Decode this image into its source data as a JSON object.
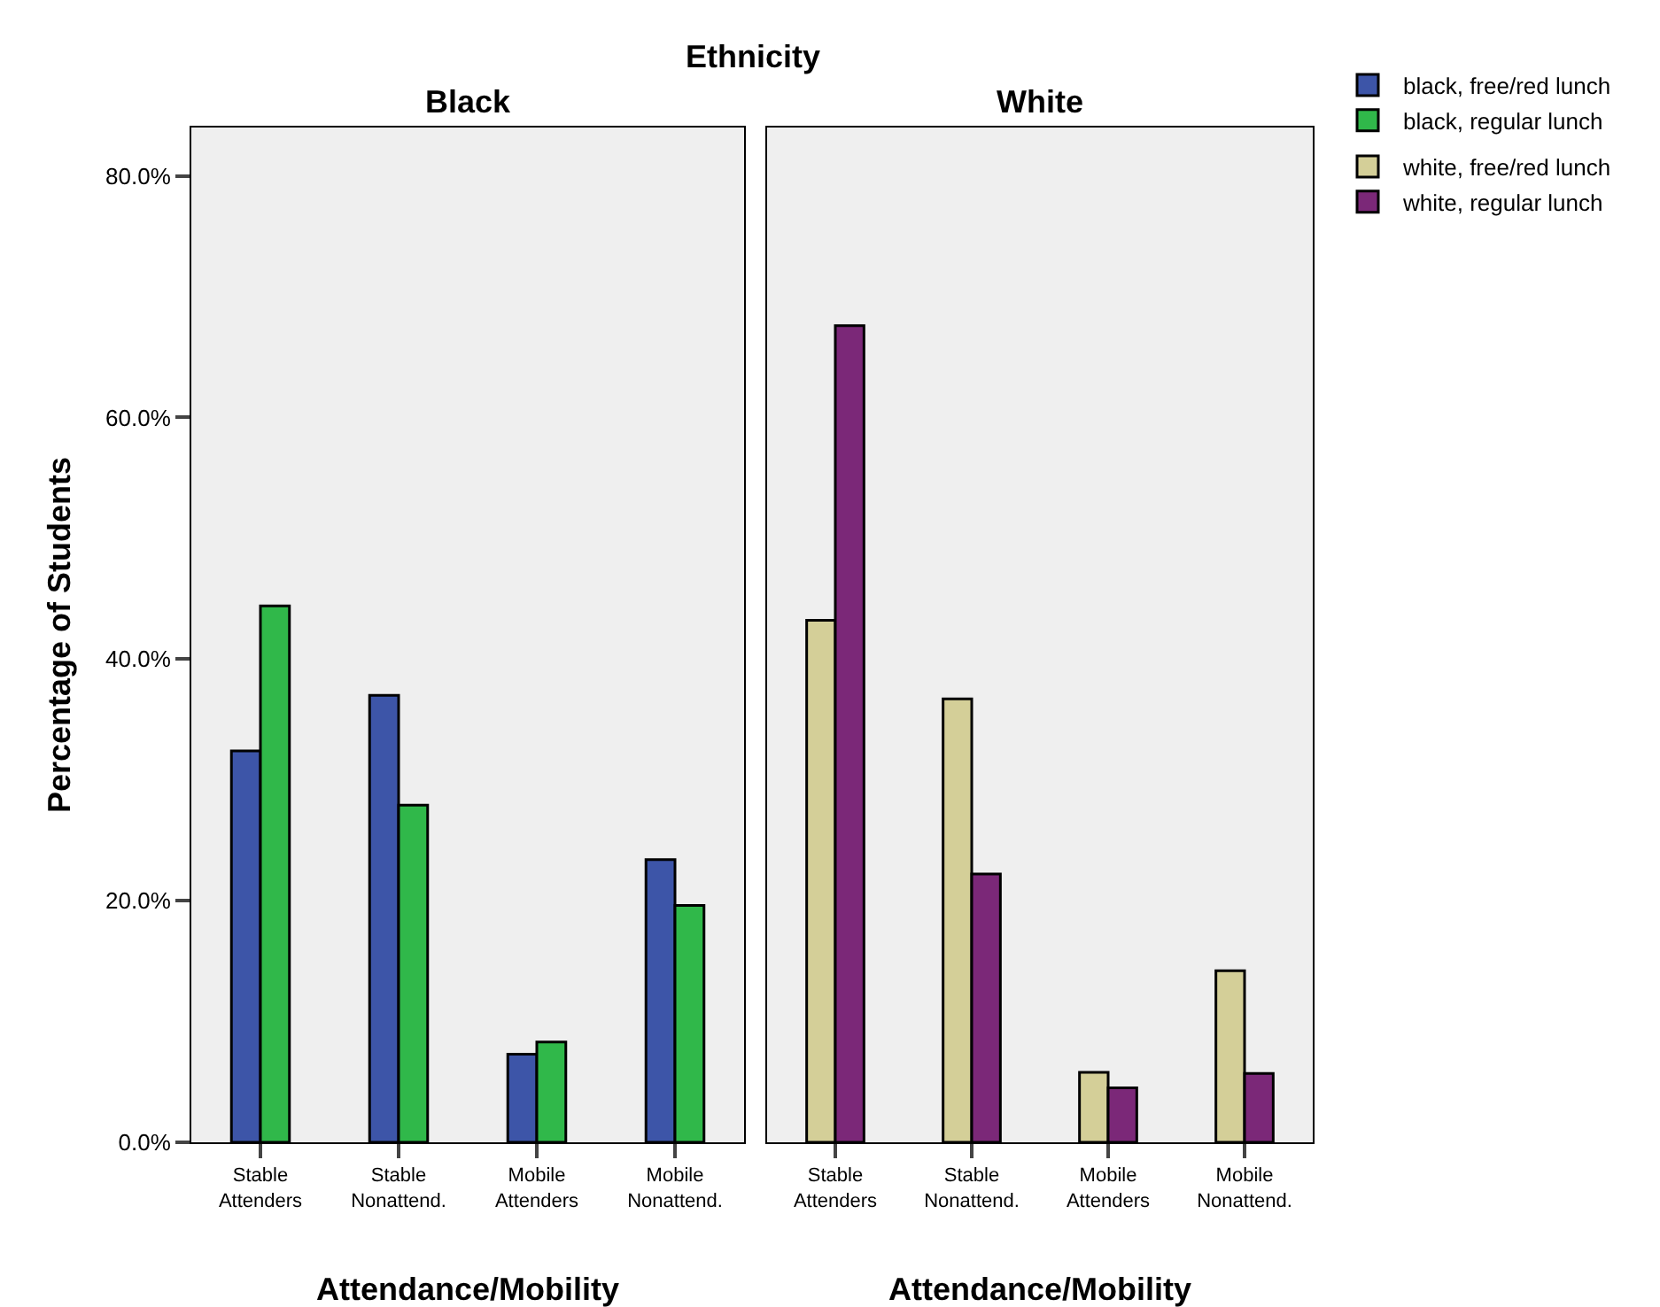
{
  "chart_data": [
    {
      "type": "bar",
      "title": "Black",
      "xlabel": "Attendance/Mobility",
      "ylabel": "Percentage of Students",
      "annotations": [
        "Ethnicity"
      ],
      "categories": [
        "Stable Attenders",
        "Stable Nonattend.",
        "Mobile Attenders",
        "Mobile Nonattend."
      ],
      "series": [
        {
          "name": "black, free/red lunch",
          "color": "#3d55a8",
          "values": [
            32.4,
            37.0,
            7.3,
            23.4
          ]
        },
        {
          "name": "black, regular lunch",
          "color": "#30b84a",
          "values": [
            44.4,
            27.9,
            8.3,
            19.6
          ]
        }
      ],
      "ylim": [
        0,
        84
      ],
      "yticks": [
        {
          "value": 0,
          "label": "0.0%"
        },
        {
          "value": 20,
          "label": "20.0%"
        },
        {
          "value": 40,
          "label": "40.0%"
        },
        {
          "value": 60,
          "label": "60.0%"
        },
        {
          "value": 80,
          "label": "80.0%"
        }
      ],
      "grid": false,
      "legend": "top right"
    },
    {
      "type": "bar",
      "title": "White",
      "xlabel": "Attendance/Mobility",
      "categories": [
        "Stable Attenders",
        "Stable Nonattend.",
        "Mobile Attenders",
        "Mobile Nonattend."
      ],
      "series": [
        {
          "name": "white, free/red lunch",
          "color": "#d4cf98",
          "values": [
            43.2,
            36.7,
            5.8,
            14.2
          ]
        },
        {
          "name": "white, regular lunch",
          "color": "#7b2878",
          "values": [
            67.6,
            22.2,
            4.5,
            5.7
          ]
        }
      ],
      "ylim": [
        0,
        84
      ],
      "tick_labels": "x",
      "grid": false,
      "legend": "top right"
    }
  ]
}
